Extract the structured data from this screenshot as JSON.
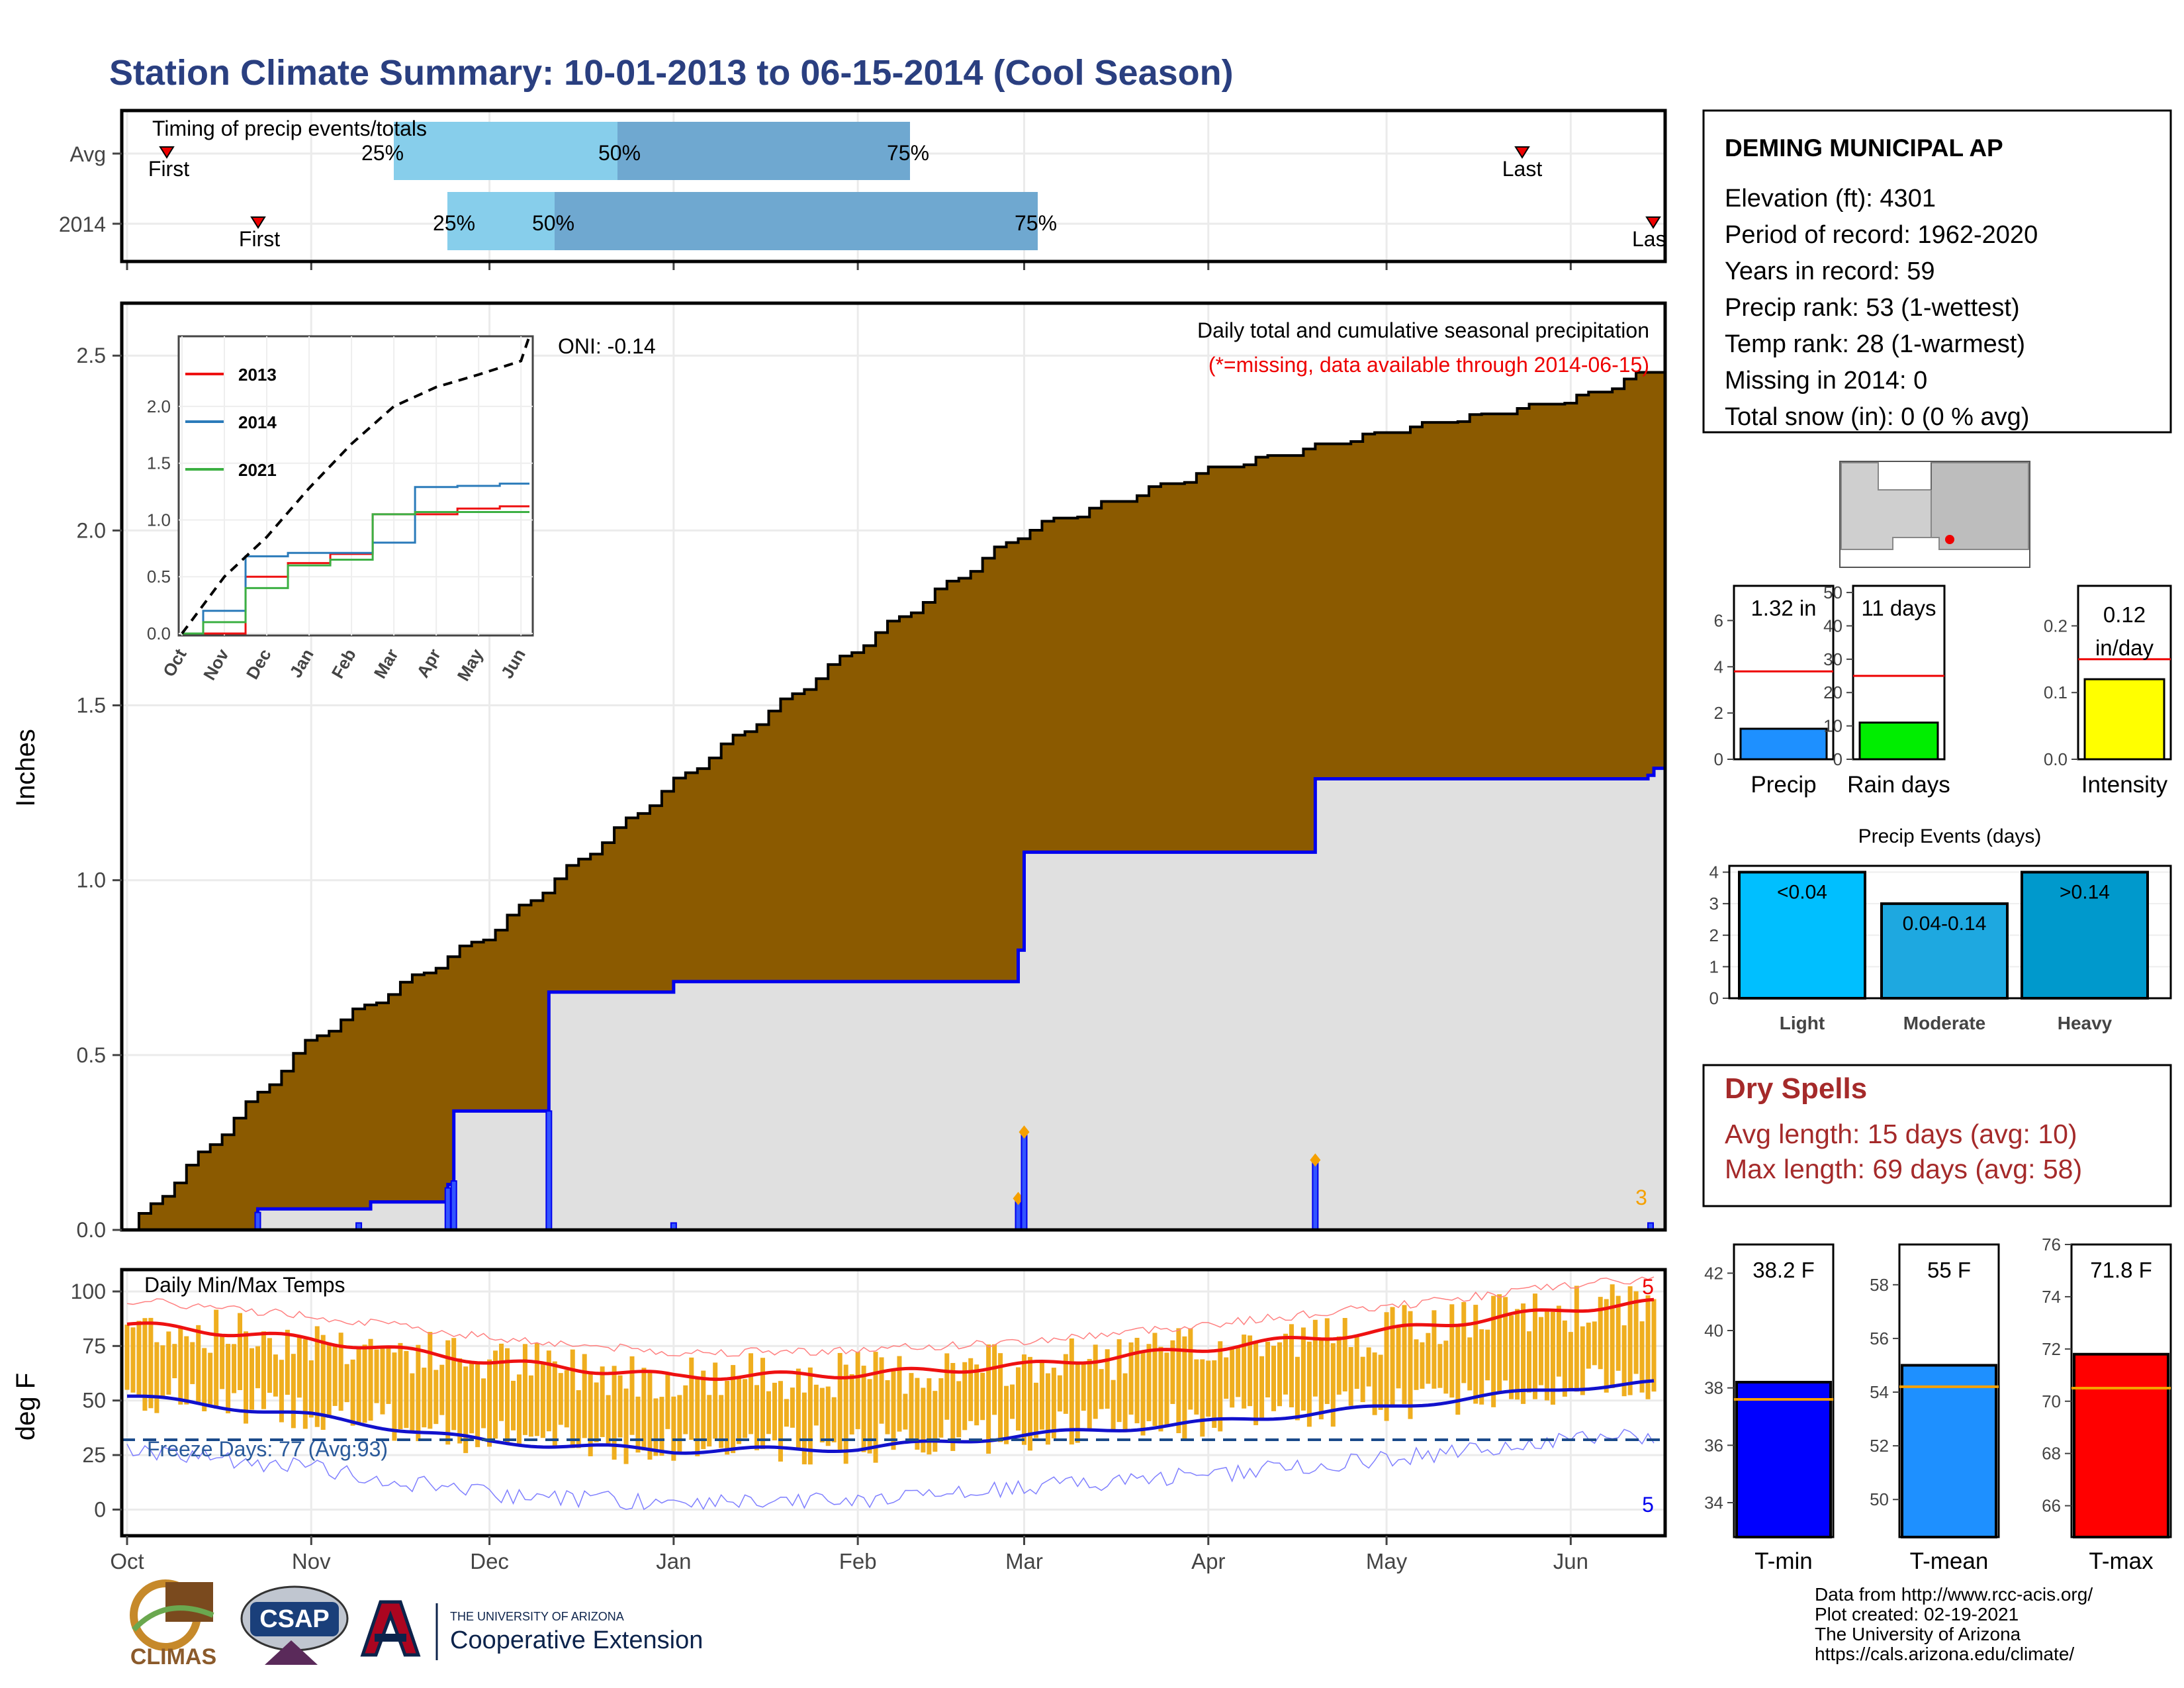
{
  "title": "Station Climate Summary: 10-01-2013 to 06-15-2014 (Cool Season)",
  "colors": {
    "title": "#2a3f80",
    "avg_max": "#ee1111",
    "avg_min": "#1111cc",
    "bars": "#efae1f",
    "cum_fill": "#8b5a00",
    "obs_fill": "#e0e0e0",
    "obs_line": "#0000ee",
    "dry": "#a52a2a"
  },
  "timing": {
    "title": "Timing of precip events/totals",
    "rows": [
      {
        "label": "Avg",
        "first": "First",
        "last": "Last",
        "q25": "25%",
        "q50": "50%",
        "q75": "75%"
      },
      {
        "label": "2014",
        "first": "First",
        "last": "Last",
        "q25": "25%",
        "q50": "50%",
        "q75": "75%"
      }
    ]
  },
  "info": {
    "station": "DEMING MUNICIPAL AP",
    "lines": [
      "Elevation (ft): 4301",
      "Period of record: 1962-2020",
      "Years in record: 59",
      "Precip rank: 53 (1-wettest)",
      "Temp rank: 28 (1-warmest)",
      "Missing in 2014: 0",
      "Total snow (in): 0 (0 % avg)"
    ]
  },
  "precip_panel": {
    "ylabel": "Inches",
    "oni": "ONI: -0.14",
    "caption": "Daily total and cumulative seasonal precipitation",
    "missing_note": "(*=missing, data available through 2014-06-15)",
    "count_label": "3",
    "yticks": [
      "0.0",
      "0.5",
      "1.0",
      "1.5",
      "2.0",
      "2.5"
    ]
  },
  "inset": {
    "legend": [
      "2013",
      "2014",
      "2021"
    ],
    "yticks": [
      "0.0",
      "0.5",
      "1.0",
      "1.5",
      "2.0"
    ],
    "xticks": [
      "Oct",
      "Nov",
      "Dec",
      "Jan",
      "Feb",
      "Mar",
      "Apr",
      "May",
      "Jun"
    ]
  },
  "temp_panel": {
    "ylabel": "deg F",
    "caption": "Daily Min/Max Temps",
    "freeze": "Freeze Days: 77 (Avg:93)",
    "max_count": "5",
    "min_count": "5",
    "yticks": [
      "0",
      "25",
      "50",
      "75",
      "100"
    ]
  },
  "xaxis": [
    "Oct",
    "Nov",
    "Dec",
    "Jan",
    "Feb",
    "Mar",
    "Apr",
    "May",
    "Jun"
  ],
  "mini_bars": [
    {
      "label": "Precip",
      "value_text": "1.32 in",
      "yticks": [
        "0",
        "2",
        "4",
        "6"
      ]
    },
    {
      "label": "Rain days",
      "value_text": "11 days",
      "yticks": [
        "0",
        "10",
        "20",
        "30",
        "40",
        "50"
      ]
    },
    {
      "label": "Intensity",
      "value_text": "0.12 in/day",
      "value_text_1": "0.12",
      "value_text_2": "in/day",
      "yticks": [
        "0.0",
        "0.1",
        "0.2"
      ]
    }
  ],
  "events": {
    "title": "Precip Events (days)",
    "yticks": [
      "0",
      "1",
      "2",
      "3",
      "4"
    ],
    "bars": [
      {
        "cat": "Light",
        "label": "<0.04"
      },
      {
        "cat": "Moderate",
        "label": "0.04-0.14"
      },
      {
        "cat": "Heavy",
        "label": ">0.14"
      }
    ]
  },
  "dry_spells": {
    "title": "Dry Spells",
    "avg": "Avg length: 15 days (avg: 10)",
    "max": "Max length: 69 days (avg: 58)"
  },
  "temp_bars": [
    {
      "label": "T-min",
      "value_text": "38.2 F",
      "yticks": [
        "34",
        "36",
        "38",
        "40",
        "42"
      ]
    },
    {
      "label": "T-mean",
      "value_text": "55 F",
      "yticks": [
        "50",
        "52",
        "54",
        "56",
        "58"
      ]
    },
    {
      "label": "T-max",
      "value_text": "71.8 F",
      "yticks": [
        "66",
        "68",
        "70",
        "72",
        "74",
        "76"
      ]
    }
  ],
  "footer": {
    "lines": [
      "Data from http://www.rcc-acis.org/",
      "Plot created: 02-19-2021",
      "The University of Arizona",
      "https://cals.arizona.edu/climate/"
    ],
    "climas": "CLIMAS",
    "csap": "CSAP",
    "ua_small": "THE UNIVERSITY OF ARIZONA",
    "ua_big": "Cooperative Extension"
  },
  "chart_data": [
    {
      "type": "area",
      "title": "Daily total and cumulative seasonal precipitation",
      "ylabel": "Inches",
      "ylim": [
        0,
        2.65
      ],
      "series": [
        {
          "name": "",
          "x": [
            "2013-10-01",
            "2013-11-01",
            "2013-12-01",
            "2014-01-01",
            "2014-02-01",
            "2014-03-01",
            "2014-04-01",
            "2014-05-01",
            "2014-06-01",
            "2014-06-15"
          ],
          "values": [
            0.0,
            0.55,
            0.85,
            1.28,
            1.67,
            2.0,
            2.17,
            2.28,
            2.37,
            2.46
          ]
        },
        {
          "name": "",
          "x": [
            "2013-10-01",
            "2013-10-23",
            "2013-11-11",
            "2013-11-24",
            "2013-11-25",
            "2013-12-11",
            "2014-01-01",
            "2014-02-28",
            "2014-03-01",
            "2014-04-19",
            "2014-06-14",
            "2014-06-15"
          ],
          "values": [
            0.0,
            0.06,
            0.08,
            0.13,
            0.34,
            0.68,
            0.71,
            0.8,
            1.08,
            1.29,
            1.3,
            1.32
          ]
        }
      ],
      "daily_events": [
        {
          "x": "2014-02-28",
          "value": 0.09
        },
        {
          "x": "2014-03-01",
          "value": 0.28
        },
        {
          "x": "2014-04-19",
          "value": 0.2
        }
      ]
    },
    {
      "type": "line",
      "title": "",
      "x": [
        "Oct",
        "Nov",
        "Dec",
        "Jan",
        "Feb",
        "Mar",
        "Apr",
        "May",
        "Jun"
      ],
      "ylim": [
        0,
        2.6
      ],
      "series": [
        {
          "name": "2013",
          "values": [
            0.0,
            0.0,
            0.5,
            0.62,
            0.7,
            1.05,
            1.05,
            1.1,
            1.12
          ]
        },
        {
          "name": "2014",
          "values": [
            0.0,
            0.2,
            0.68,
            0.71,
            0.71,
            0.8,
            1.29,
            1.3,
            1.32
          ]
        },
        {
          "name": "2021",
          "values": [
            0.0,
            0.1,
            0.4,
            0.6,
            0.65,
            1.05,
            1.07,
            1.07,
            1.07
          ]
        },
        {
          "name": "",
          "values": [
            0.0,
            0.5,
            0.85,
            1.28,
            1.67,
            2.0,
            2.17,
            2.28,
            2.4
          ]
        }
      ]
    },
    {
      "type": "bar",
      "title": "Daily Min/Max Temps",
      "ylabel": "deg F",
      "ylim": [
        -12,
        110
      ],
      "x": [
        "Oct",
        "Nov",
        "Dec",
        "Jan",
        "Feb",
        "Mar",
        "Apr",
        "May",
        "Jun"
      ],
      "series": [
        {
          "name": "",
          "values": [
            85,
            78,
            68,
            61,
            62,
            66,
            74,
            82,
            92
          ]
        },
        {
          "name": "",
          "values": [
            52,
            43,
            31,
            27,
            28,
            34,
            40,
            47,
            56
          ]
        }
      ],
      "reference_line": 32
    },
    {
      "type": "bar",
      "title": "",
      "categories": [
        "Precip",
        "Rain days",
        "Intensity"
      ],
      "values": [
        1.32,
        11,
        0.12
      ],
      "averages": [
        3.8,
        25,
        0.15
      ]
    },
    {
      "type": "bar",
      "title": "Precip Events (days)",
      "categories": [
        "Light",
        "Moderate",
        "Heavy"
      ],
      "values": [
        4,
        3,
        4
      ]
    },
    {
      "type": "bar",
      "title": "",
      "categories": [
        "T-min",
        "T-mean",
        "T-max"
      ],
      "values": [
        38.2,
        55,
        71.8
      ],
      "averages": [
        37.6,
        54.2,
        70.5
      ]
    }
  ]
}
